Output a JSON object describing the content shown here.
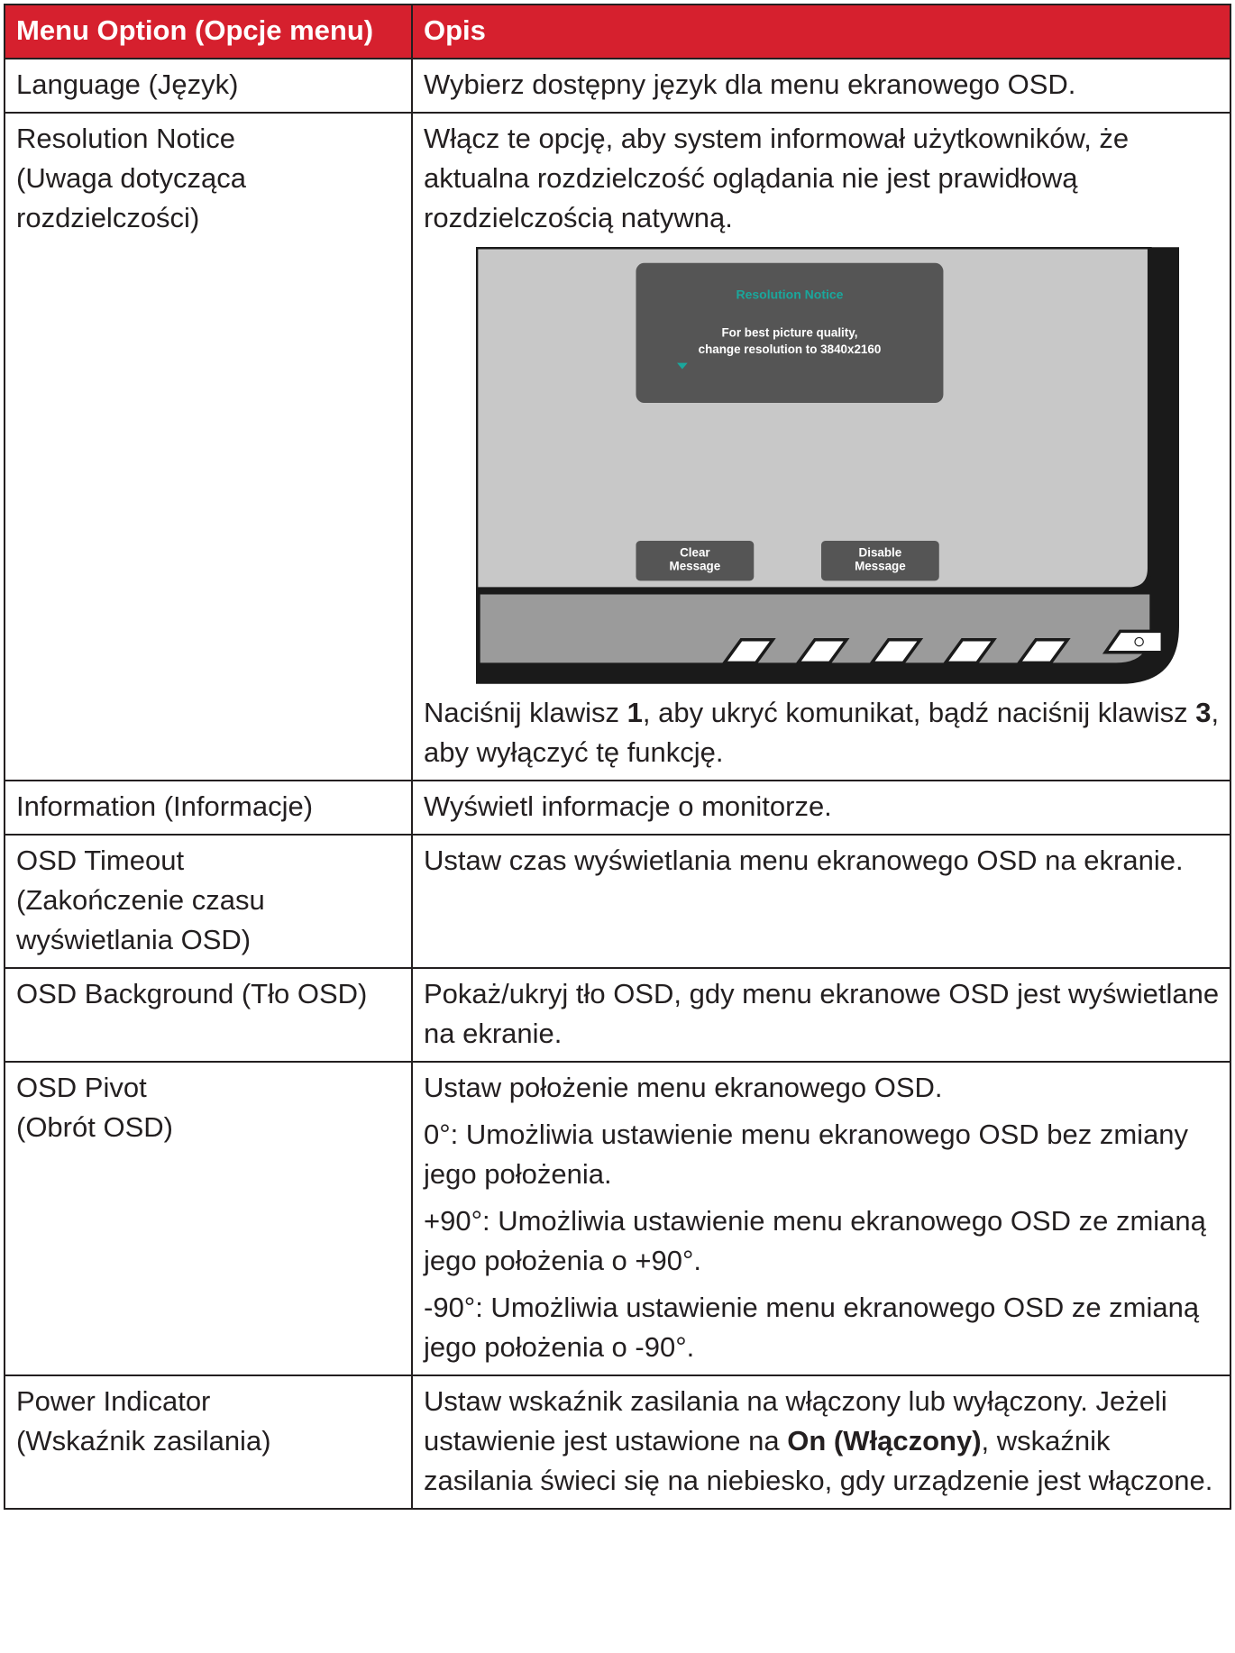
{
  "header": {
    "option": "Menu Option (Opcje menu)",
    "description": "Opis"
  },
  "rows": [
    {
      "option": [
        "Language (Język)"
      ],
      "description": [
        [
          "Wybierz dostępny język dla menu ekranowego OSD."
        ]
      ]
    },
    {
      "option": [
        "Resolution Notice",
        "(Uwaga dotycząca rozdzielczości)"
      ],
      "description": [
        [
          "Włącz te opcję, aby system informował użytkowników, że aktualna rozdzielczość oglądania nie jest prawidłową rozdzielczością natywną."
        ]
      ],
      "figure": {
        "title": "Resolution Notice",
        "message": [
          "For best picture quality,",
          "change resolution to 3840x2160"
        ],
        "buttons": [
          [
            "Clear",
            "Message"
          ],
          [
            "Disable",
            "Message"
          ]
        ]
      },
      "after": [
        [
          "Naciśnij klawisz ",
          "1",
          ", aby ukryć komunikat, bądź naciśnij klawisz ",
          "3",
          ", aby wyłączyć tę funkcję."
        ]
      ]
    },
    {
      "option": [
        "Information (Informacje)"
      ],
      "description": [
        [
          "Wyświetl informacje o monitorze."
        ]
      ]
    },
    {
      "option": [
        "OSD Timeout",
        "(Zakończenie czasu wyświetlania OSD)"
      ],
      "description": [
        [
          "Ustaw czas wyświetlania menu ekranowego OSD na ekranie."
        ]
      ]
    },
    {
      "option": [
        "OSD Background (Tło OSD)"
      ],
      "description": [
        [
          "Pokaż/ukryj tło OSD, gdy menu ekranowe OSD jest wyświetlane na ekranie."
        ]
      ]
    },
    {
      "option": [
        "OSD Pivot",
        "(Obrót OSD)"
      ],
      "description": [
        [
          "Ustaw położenie menu ekranowego OSD."
        ],
        [
          "0°: Umożliwia ustawienie menu ekranowego OSD bez zmiany jego położenia."
        ],
        [
          "+90°: Umożliwia ustawienie menu ekranowego OSD ze zmianą jego położenia o +90°."
        ],
        [
          "-90°: Umożliwia ustawienie menu ekranowego OSD ze zmianą jego położenia o -90°."
        ]
      ]
    },
    {
      "option": [
        "Power Indicator",
        "(Wskaźnik zasilania)"
      ],
      "description": [
        [
          "Ustaw wskaźnik zasilania na włączony lub wyłączony. Jeżeli ustawienie jest ustawione na ",
          "On (Włączony)",
          ", wskaźnik zasilania świeci się na niebiesko, gdy urządzenie jest włączone."
        ]
      ]
    }
  ]
}
